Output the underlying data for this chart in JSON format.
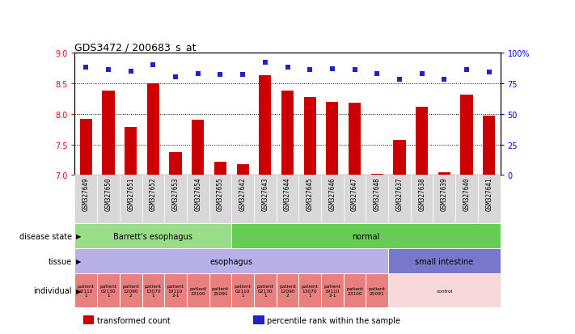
{
  "title": "GDS3472 / 200683_s_at",
  "samples": [
    "GSM327649",
    "GSM327650",
    "GSM327651",
    "GSM327652",
    "GSM327653",
    "GSM327654",
    "GSM327655",
    "GSM327642",
    "GSM327643",
    "GSM327644",
    "GSM327645",
    "GSM327646",
    "GSM327647",
    "GSM327648",
    "GSM327637",
    "GSM327638",
    "GSM327639",
    "GSM327640",
    "GSM327641"
  ],
  "bar_values": [
    7.92,
    8.38,
    7.78,
    8.5,
    7.38,
    7.9,
    7.22,
    7.18,
    8.63,
    8.38,
    8.27,
    8.2,
    8.18,
    7.02,
    7.57,
    8.11,
    7.04,
    8.31,
    7.97
  ],
  "dot_values": [
    88,
    86,
    85,
    90,
    80,
    83,
    82,
    82,
    92,
    88,
    86,
    87,
    86,
    83,
    78,
    83,
    78,
    86,
    84
  ],
  "ylim_left": [
    7.0,
    9.0
  ],
  "ylim_right": [
    0,
    100
  ],
  "yticks_left": [
    7.0,
    7.5,
    8.0,
    8.5,
    9.0
  ],
  "yticks_right": [
    0,
    25,
    50,
    75,
    100
  ],
  "bar_color": "#cc0000",
  "dot_color": "#2222cc",
  "grid_lines": [
    7.5,
    8.0,
    8.5
  ],
  "disease_state_groups": [
    {
      "label": "Barrett's esophagus",
      "start": 0,
      "end": 7,
      "color": "#99dd88"
    },
    {
      "label": "normal",
      "start": 7,
      "end": 19,
      "color": "#66cc55"
    }
  ],
  "tissue_groups": [
    {
      "label": "esophagus",
      "start": 0,
      "end": 14,
      "color": "#b8b0e8"
    },
    {
      "label": "small intestine",
      "start": 14,
      "end": 19,
      "color": "#7777cc"
    }
  ],
  "individual_groups": [
    {
      "label": "patient\n02110\n1",
      "start": 0,
      "end": 1,
      "color": "#e88080"
    },
    {
      "label": "patient\n02130\n1",
      "start": 1,
      "end": 2,
      "color": "#e88080"
    },
    {
      "label": "patient\n12090\n2",
      "start": 2,
      "end": 3,
      "color": "#e88080"
    },
    {
      "label": "patient\n13070\n1",
      "start": 3,
      "end": 4,
      "color": "#e88080"
    },
    {
      "label": "patient\n19110\n2-1",
      "start": 4,
      "end": 5,
      "color": "#e88080"
    },
    {
      "label": "patient\n23100",
      "start": 5,
      "end": 6,
      "color": "#e88080"
    },
    {
      "label": "patient\n25091",
      "start": 6,
      "end": 7,
      "color": "#e88080"
    },
    {
      "label": "patient\n02110\n1",
      "start": 7,
      "end": 8,
      "color": "#e88080"
    },
    {
      "label": "patient\n02130\n1",
      "start": 8,
      "end": 9,
      "color": "#e88080"
    },
    {
      "label": "patient\n12090\n2",
      "start": 9,
      "end": 10,
      "color": "#e88080"
    },
    {
      "label": "patient\n13070\n1",
      "start": 10,
      "end": 11,
      "color": "#e88080"
    },
    {
      "label": "patient\n19110\n2-1",
      "start": 11,
      "end": 12,
      "color": "#e88080"
    },
    {
      "label": "patient\n23100",
      "start": 12,
      "end": 13,
      "color": "#e88080"
    },
    {
      "label": "patient\n25091",
      "start": 13,
      "end": 14,
      "color": "#e88080"
    },
    {
      "label": "control",
      "start": 14,
      "end": 19,
      "color": "#f8d8d8"
    }
  ],
  "legend_items": [
    {
      "label": "transformed count",
      "color": "#cc0000"
    },
    {
      "label": "percentile rank within the sample",
      "color": "#2222cc"
    }
  ],
  "xticklabel_bg": "#d8d8d8"
}
